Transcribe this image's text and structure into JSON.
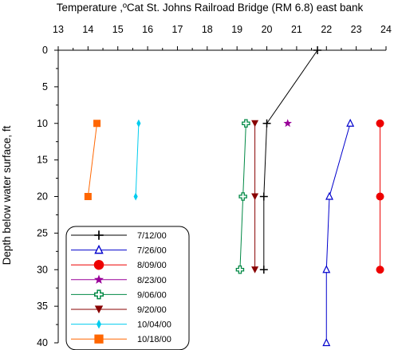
{
  "chart_data": {
    "type": "scatter",
    "title": "Temperature ,ºCat St. Johns Railroad Bridge (RM 6.8) east bank",
    "xlabel": "",
    "ylabel": "Depth below water surface, ft",
    "xlim": [
      13,
      24
    ],
    "ylim": [
      0,
      40
    ],
    "y_inverted": true,
    "x_axis_position": "top",
    "x_ticks": [
      "13",
      "14",
      "15",
      "16",
      "17",
      "18",
      "19",
      "20",
      "21",
      "22",
      "23",
      "24"
    ],
    "y_ticks": [
      "0",
      "5",
      "10",
      "15",
      "20",
      "25",
      "30",
      "35",
      "40"
    ],
    "legend_position": "bottom-left",
    "series": [
      {
        "name": "7/12/00",
        "color": "#000000",
        "marker": "plus",
        "points": [
          [
            21.7,
            0
          ],
          [
            20.0,
            10
          ],
          [
            19.9,
            20
          ],
          [
            19.9,
            30
          ]
        ]
      },
      {
        "name": "7/26/00",
        "color": "#0000cc",
        "marker": "triangle-open",
        "points": [
          [
            22.8,
            10
          ],
          [
            22.1,
            20
          ],
          [
            22.0,
            30
          ],
          [
            22.0,
            40
          ]
        ]
      },
      {
        "name": "8/09/00",
        "color": "#ee0000",
        "marker": "circle",
        "points": [
          [
            23.8,
            10
          ],
          [
            23.8,
            20
          ],
          [
            23.8,
            30
          ]
        ]
      },
      {
        "name": "8/23/00",
        "color": "#990099",
        "marker": "star",
        "points": [
          [
            20.7,
            10
          ]
        ]
      },
      {
        "name": "9/06/00",
        "color": "#008844",
        "marker": "cross-open",
        "points": [
          [
            19.3,
            10
          ],
          [
            19.2,
            20
          ],
          [
            19.1,
            30
          ]
        ]
      },
      {
        "name": "9/20/00",
        "color": "#880000",
        "marker": "triangle-down",
        "points": [
          [
            19.6,
            10
          ],
          [
            19.6,
            20
          ],
          [
            19.6,
            30
          ]
        ]
      },
      {
        "name": "10/04/00",
        "color": "#00ccee",
        "marker": "diamond",
        "points": [
          [
            15.7,
            10
          ],
          [
            15.6,
            20
          ]
        ]
      },
      {
        "name": "10/18/00",
        "color": "#ff6600",
        "marker": "square",
        "points": [
          [
            14.3,
            10
          ],
          [
            14.0,
            20
          ]
        ]
      }
    ]
  }
}
